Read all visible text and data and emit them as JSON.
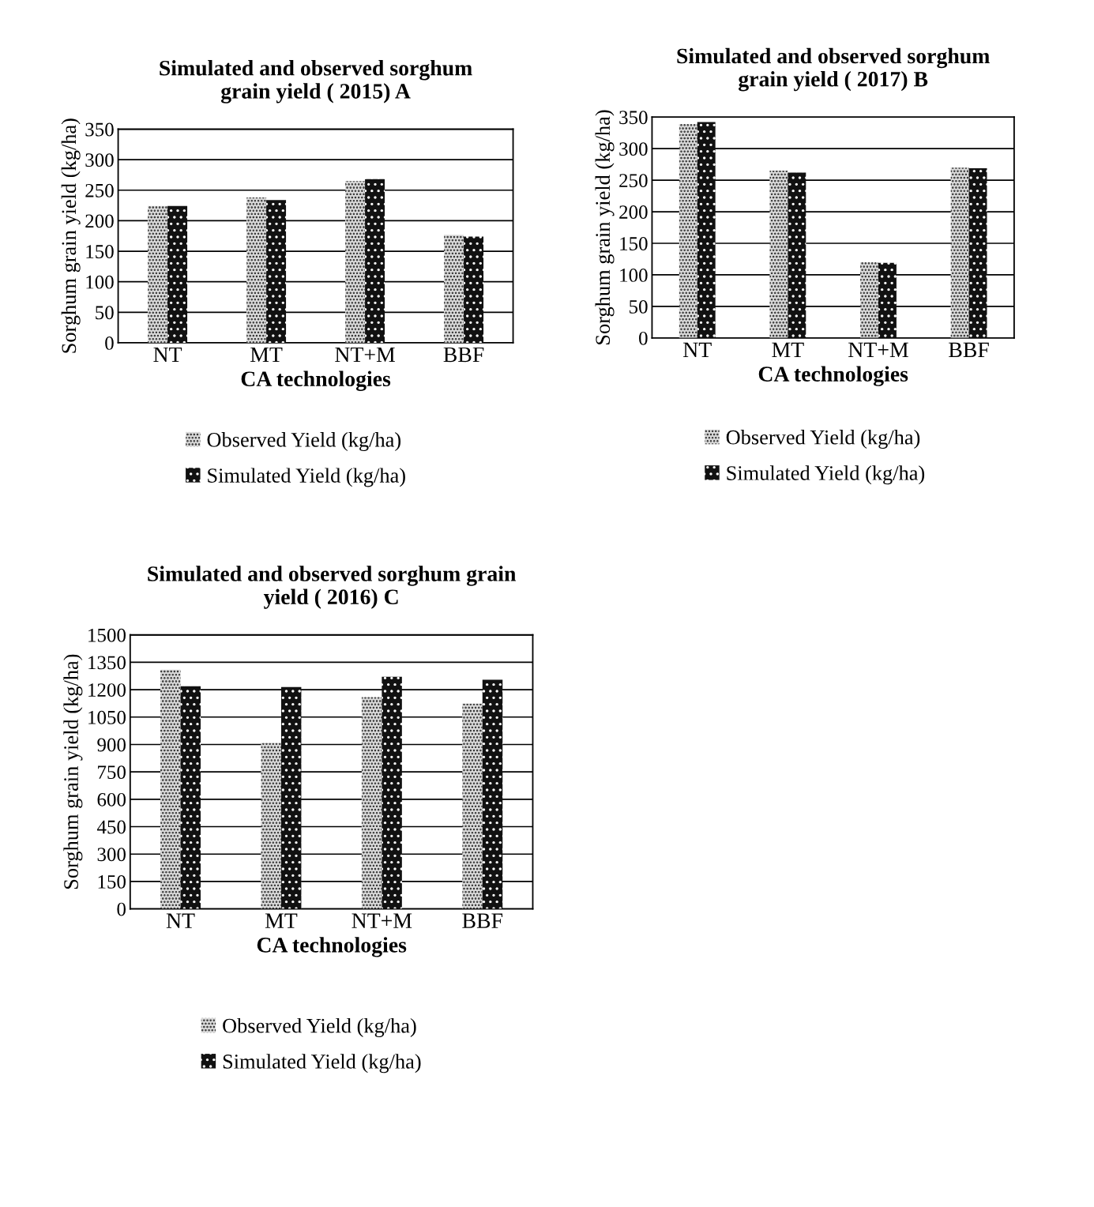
{
  "chart_data": [
    {
      "type": "bar",
      "title": "Simulated and observed sorghum\ngrain yield ( 2015) A",
      "xlabel": "CA technologies",
      "ylabel": "Sorghum grain yield (kg/ha)",
      "categories": [
        "NT",
        "MT",
        "NT+M",
        "BBF"
      ],
      "series": [
        {
          "name": "Observed Yield (kg/ha)",
          "color": "#d9d9d9",
          "values": [
            224,
            238,
            265,
            177
          ]
        },
        {
          "name": "Simulated Yield (kg/ha)",
          "color": "#111111",
          "values": [
            224,
            234,
            268,
            174
          ]
        }
      ],
      "ylim": [
        0,
        350
      ],
      "yticks": [
        0,
        50,
        100,
        150,
        200,
        250,
        300,
        350
      ],
      "grid": "y",
      "legend": "bottom"
    },
    {
      "type": "bar",
      "title": "Simulated and observed sorghum\ngrain yield ( 2017) B",
      "xlabel": "CA technologies",
      "ylabel": "Sorghum grain yield (kg/ha)",
      "categories": [
        "NT",
        "MT",
        "NT+M",
        "BBF"
      ],
      "series": [
        {
          "name": "Observed Yield (kg/ha)",
          "color": "#d9d9d9",
          "values": [
            339,
            265,
            120,
            270
          ]
        },
        {
          "name": "Simulated Yield (kg/ha)",
          "color": "#111111",
          "values": [
            342,
            262,
            119,
            269
          ]
        }
      ],
      "ylim": [
        0,
        350
      ],
      "yticks": [
        0,
        50,
        100,
        150,
        200,
        250,
        300,
        350
      ],
      "grid": "y",
      "legend": "bottom"
    },
    {
      "type": "bar",
      "title": "Simulated and observed sorghum grain\nyield ( 2016) C",
      "xlabel": "CA technologies",
      "ylabel": "Sorghum grain yield (kg/ha)",
      "categories": [
        "NT",
        "MT",
        "NT+M",
        "BBF"
      ],
      "series": [
        {
          "name": "Observed Yield (kg/ha)",
          "color": "#d9d9d9",
          "values": [
            1310,
            908,
            1159,
            1124
          ]
        },
        {
          "name": "Simulated Yield (kg/ha)",
          "color": "#111111",
          "values": [
            1219,
            1215,
            1271,
            1254
          ]
        }
      ],
      "ylim": [
        0,
        1500
      ],
      "yticks": [
        0,
        150,
        300,
        450,
        600,
        750,
        900,
        1050,
        1200,
        1350,
        1500
      ],
      "grid": "y",
      "legend": "bottom"
    }
  ]
}
